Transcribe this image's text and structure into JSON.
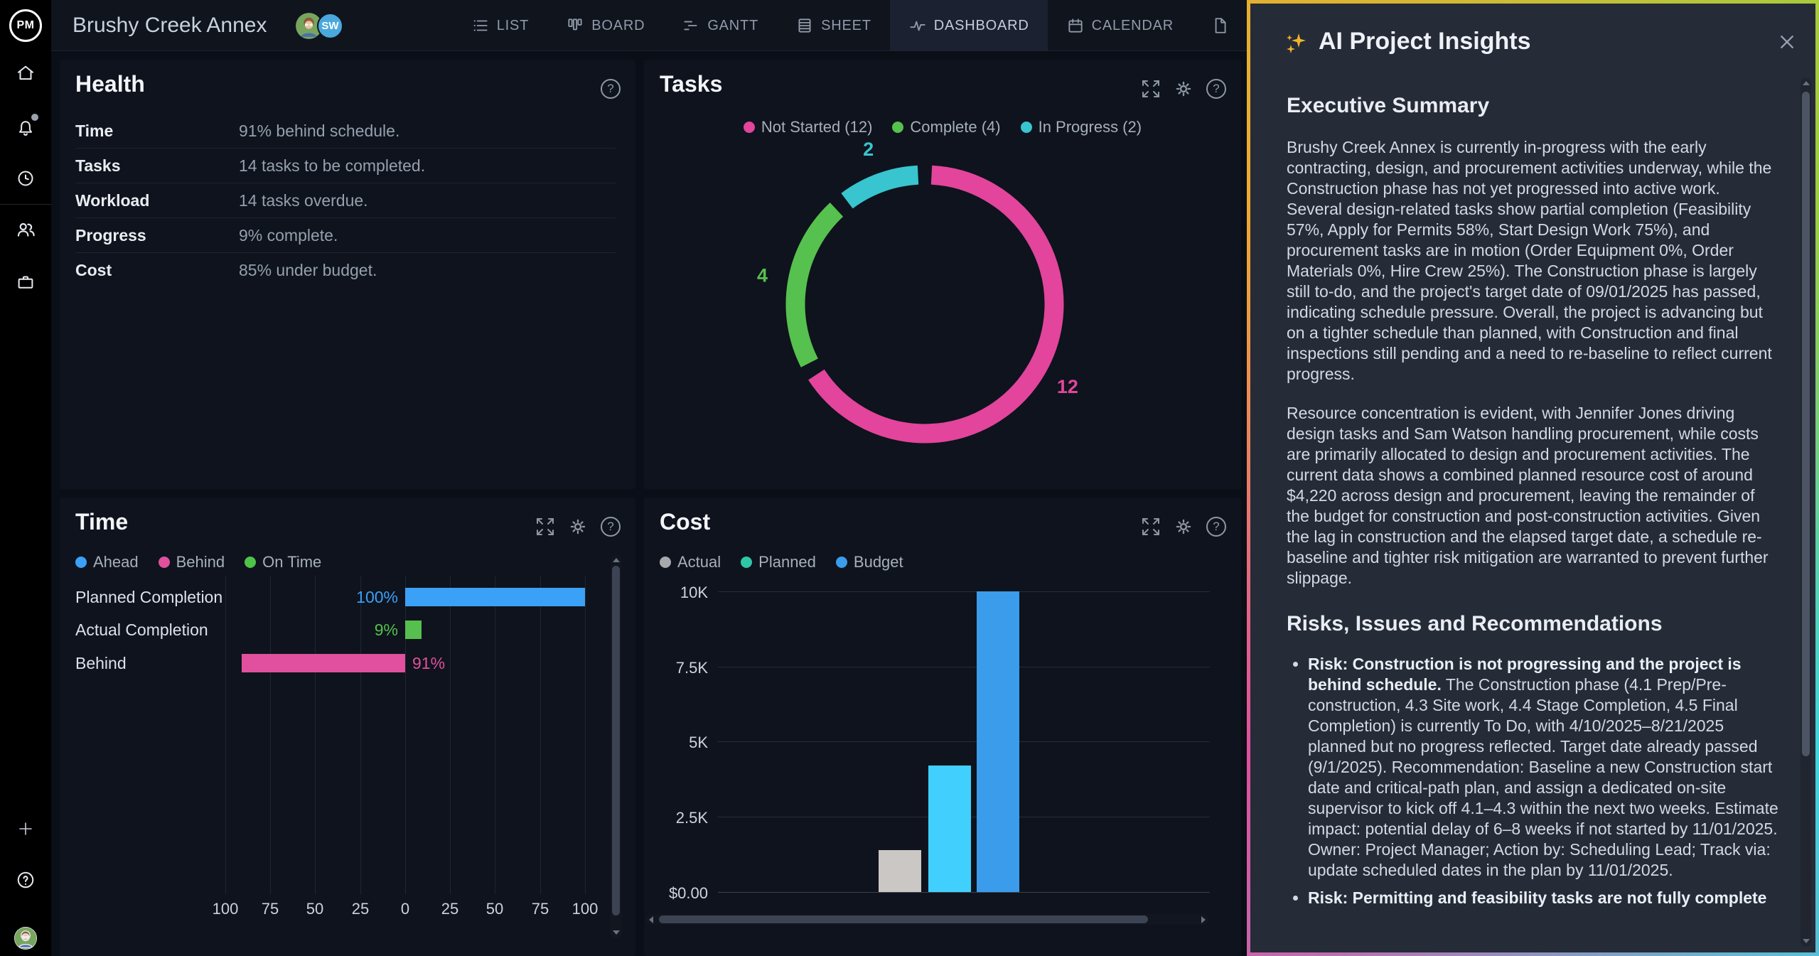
{
  "sidebar": {
    "logo_text": "PM",
    "icons": [
      "home",
      "notifications",
      "timesheets",
      "team",
      "projects",
      "add",
      "help",
      "account"
    ]
  },
  "header": {
    "project_title": "Brushy Creek Annex",
    "avatars": [
      {
        "kind": "image",
        "label": "avatar-1"
      },
      {
        "kind": "initials",
        "initials": "SW"
      }
    ],
    "tabs": [
      {
        "label": "LIST"
      },
      {
        "label": "BOARD"
      },
      {
        "label": "GANTT"
      },
      {
        "label": "SHEET"
      },
      {
        "label": "DASHBOARD",
        "active": true
      },
      {
        "label": "CALENDAR"
      },
      {
        "label": ""
      }
    ]
  },
  "panels": {
    "health": {
      "title": "Health",
      "rows": [
        {
          "label": "Time",
          "value": "91% behind schedule."
        },
        {
          "label": "Tasks",
          "value": "14 tasks to be completed."
        },
        {
          "label": "Workload",
          "value": "14 tasks overdue."
        },
        {
          "label": "Progress",
          "value": "9% complete."
        },
        {
          "label": "Cost",
          "value": "85% under budget."
        }
      ]
    },
    "tasks": {
      "title": "Tasks",
      "legend": [
        {
          "label": "Not Started (12)",
          "color": "#e2459b"
        },
        {
          "label": "Complete (4)",
          "color": "#56c14e"
        },
        {
          "label": "In Progress (2)",
          "color": "#38c5d0"
        }
      ],
      "chart_data": {
        "type": "pie",
        "labels": [
          "Not Started",
          "Complete",
          "In Progress"
        ],
        "values": [
          12,
          4,
          2
        ],
        "colors": [
          "#e2459b",
          "#56c14e",
          "#38c5d0"
        ],
        "label_values": [
          "12",
          "4",
          "2"
        ]
      }
    },
    "time": {
      "title": "Time",
      "legend": [
        {
          "label": "Ahead",
          "color": "#3ba1f6"
        },
        {
          "label": "Behind",
          "color": "#e0509e"
        },
        {
          "label": "On Time",
          "color": "#4dc449"
        }
      ],
      "chart_data": {
        "type": "bar",
        "orientation": "horizontal",
        "xlim": [
          -100,
          100
        ],
        "ticks": [
          "100",
          "75",
          "50",
          "25",
          "0",
          "25",
          "50",
          "75",
          "100"
        ],
        "rows": [
          {
            "label": "Planned Completion",
            "value": 100,
            "display": "100%",
            "direction": "right",
            "color": "#3ba1f6"
          },
          {
            "label": "Actual Completion",
            "value": 9,
            "display": "9%",
            "direction": "right",
            "color": "#55c04e"
          },
          {
            "label": "Behind",
            "value": 91,
            "display": "91%",
            "direction": "left",
            "color": "#e0509e"
          }
        ]
      }
    },
    "cost": {
      "title": "Cost",
      "legend": [
        {
          "label": "Actual",
          "color": "#a7a9ad"
        },
        {
          "label": "Planned",
          "color": "#2fc7a8"
        },
        {
          "label": "Budget",
          "color": "#3b9ceb"
        }
      ],
      "chart_data": {
        "type": "bar",
        "categories": [
          "Actual",
          "Planned",
          "Budget"
        ],
        "values": [
          1400,
          4200,
          10000
        ],
        "colors": [
          "#cac7c4",
          "#41d0fd",
          "#3b9ceb"
        ],
        "yticks": [
          "10K",
          "7.5K",
          "5K",
          "2.5K",
          "$0.00"
        ],
        "ylim": [
          0,
          10000
        ]
      }
    }
  },
  "ai_panel": {
    "title": "AI Project Insights",
    "exec_heading": "Executive Summary",
    "exec_paragraphs": [
      "Brushy Creek Annex is currently in-progress with the early contracting, design, and procurement activities underway, while the Construction phase has not yet progressed into active work. Several design-related tasks show partial completion (Feasibility 57%, Apply for Permits 58%, Start Design Work 75%), and procurement tasks are in motion (Order Equipment 0%, Order Materials 0%, Hire Crew 25%). The Construction phase is largely still to-do, and the project's target date of 09/01/2025 has passed, indicating schedule pressure. Overall, the project is advancing but on a tighter schedule than planned, with Construction and final inspections still pending and a need to re-baseline to reflect current progress.",
      "Resource concentration is evident, with Jennifer Jones driving design tasks and Sam Watson handling procurement, while costs are primarily allocated to design and procurement activities. The current data shows a combined planned resource cost of around $4,220 across design and procurement, leaving the remainder of the budget for construction and post-construction activities. Given the lag in construction and the elapsed target date, a schedule re-baseline and tighter risk mitigation are warranted to prevent further slippage."
    ],
    "risks_heading": "Risks, Issues and Recommendations",
    "bullets": [
      {
        "bold": "Risk: Construction is not progressing and the project is behind schedule.",
        "text": " The Construction phase (4.1 Prep/Pre-construction, 4.3 Site work, 4.4 Stage Completion, 4.5 Final Completion) is currently To Do, with 4/10/2025–8/21/2025 planned but no progress reflected. Target date already passed (9/1/2025). Recommendation: Baseline a new Construction start date and critical-path plan, and assign a dedicated on-site supervisor to kick off 4.1–4.3 within the next two weeks. Estimate impact: potential delay of 6–8 weeks if not started by 11/01/2025. Owner: Project Manager; Action by: Scheduling Lead; Track via: update scheduled dates in the plan by 11/01/2025."
      },
      {
        "bold": "Risk: Permitting and feasibility tasks are not fully complete",
        "text": ""
      }
    ]
  }
}
